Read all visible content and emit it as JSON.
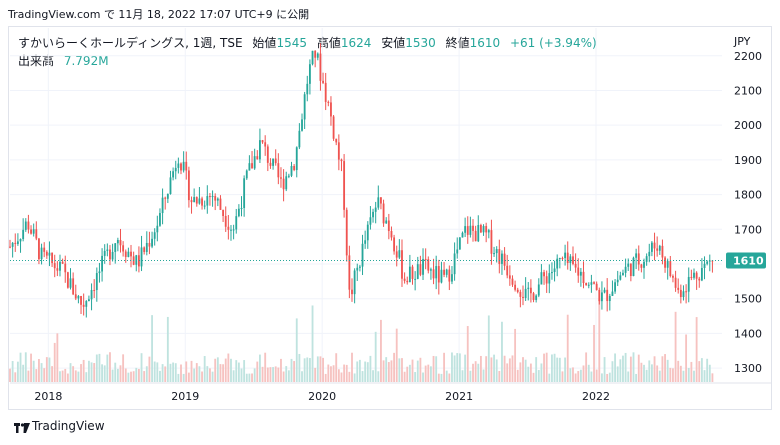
{
  "header": {
    "source_line": "TradingView.com で 11月 18, 2022 17:07 UTC+9 に公開"
  },
  "legend": {
    "symbol": "すかいらーくホールディングス, 1週, TSE",
    "open_label": "始値",
    "open": "1545",
    "high_label": "高値",
    "high": "1624",
    "low_label": "安値",
    "low": "1530",
    "close_label": "終値",
    "close": "1610",
    "change": "+61 (+3.94%)",
    "volume_label": "出来高",
    "volume": "7.792M"
  },
  "footer": {
    "brand": "TradingView"
  },
  "colors": {
    "up": "#26a69a",
    "down": "#ef5350",
    "up_vol": "#bfe3df",
    "down_vol": "#f6c2c0",
    "price_tag": "#26a69a"
  },
  "chart_data": {
    "type": "candlestick",
    "currency": "JPY",
    "ylim": [
      1260,
      2280
    ],
    "yticks": [
      1300,
      1400,
      1500,
      1600,
      1700,
      1800,
      1900,
      2000,
      2100,
      2200
    ],
    "xticks": [
      {
        "label": "2018",
        "x": 2018.0
      },
      {
        "label": "2019",
        "x": 2019.0
      },
      {
        "label": "2020",
        "x": 2020.0
      },
      {
        "label": "2021",
        "x": 2021.0
      },
      {
        "label": "2022",
        "x": 2022.0
      }
    ],
    "xlim": [
      2017.72,
      2022.92
    ],
    "last_price": "1610",
    "last_value": 1610,
    "price_path": [
      [
        2017.72,
        1650
      ],
      [
        2017.85,
        1720
      ],
      [
        2017.95,
        1620
      ],
      [
        2018.1,
        1580
      ],
      [
        2018.25,
        1480
      ],
      [
        2018.35,
        1560
      ],
      [
        2018.5,
        1680
      ],
      [
        2018.65,
        1600
      ],
      [
        2018.8,
        1720
      ],
      [
        2018.95,
        1920
      ],
      [
        2019.05,
        1780
      ],
      [
        2019.2,
        1800
      ],
      [
        2019.35,
        1700
      ],
      [
        2019.45,
        1850
      ],
      [
        2019.55,
        1950
      ],
      [
        2019.7,
        1830
      ],
      [
        2019.8,
        1900
      ],
      [
        2019.9,
        2150
      ],
      [
        2019.95,
        2210
      ],
      [
        2020.05,
        2050
      ],
      [
        2020.15,
        1850
      ],
      [
        2020.2,
        1500
      ],
      [
        2020.3,
        1650
      ],
      [
        2020.4,
        1780
      ],
      [
        2020.5,
        1700
      ],
      [
        2020.6,
        1560
      ],
      [
        2020.75,
        1590
      ],
      [
        2020.9,
        1550
      ],
      [
        2021.05,
        1700
      ],
      [
        2021.2,
        1680
      ],
      [
        2021.35,
        1590
      ],
      [
        2021.5,
        1500
      ],
      [
        2021.62,
        1560
      ],
      [
        2021.75,
        1610
      ],
      [
        2021.9,
        1570
      ],
      [
        2022.05,
        1500
      ],
      [
        2022.2,
        1580
      ],
      [
        2022.35,
        1620
      ],
      [
        2022.45,
        1660
      ],
      [
        2022.6,
        1520
      ],
      [
        2022.75,
        1580
      ],
      [
        2022.85,
        1610
      ]
    ],
    "series_start": 2017.72,
    "series_end": 2022.85,
    "weeks": 268
  }
}
